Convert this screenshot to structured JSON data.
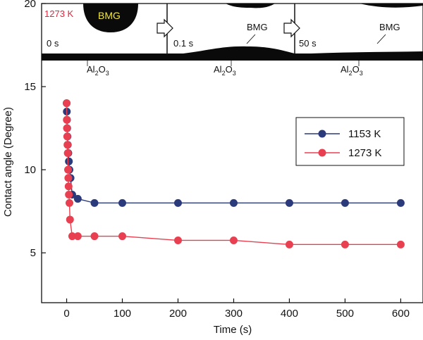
{
  "chart_data": {
    "type": "line",
    "xlabel": "Time (s)",
    "ylabel": "Contact angle (Degree)",
    "xlim": [
      -45,
      640
    ],
    "ylim": [
      2,
      20
    ],
    "xticks": [
      0,
      100,
      200,
      300,
      400,
      500,
      600
    ],
    "yticks": [
      5,
      10,
      15,
      20
    ],
    "legend_position": "right",
    "series": [
      {
        "name": "1153 K",
        "color": "#2b3a7a",
        "x": [
          0,
          0.3,
          0.6,
          1,
          1.5,
          2,
          3,
          4,
          5,
          7,
          10,
          20,
          50,
          100,
          200,
          300,
          400,
          500,
          600
        ],
        "y": [
          14,
          13.5,
          13,
          12.5,
          12,
          11.5,
          11,
          10.5,
          10,
          9.5,
          8.5,
          8.25,
          8,
          8,
          8,
          8,
          8,
          8,
          8
        ]
      },
      {
        "name": "1273 K",
        "color": "#e84050",
        "x": [
          0,
          0.3,
          0.6,
          1,
          1.5,
          2,
          2.5,
          3,
          3.5,
          4,
          5,
          6,
          10,
          20,
          50,
          100,
          200,
          300,
          400,
          500,
          600
        ],
        "y": [
          14,
          13,
          12.5,
          12,
          11.5,
          11,
          10,
          9.5,
          9,
          8.5,
          8,
          7,
          6,
          6,
          6,
          6,
          5.75,
          5.75,
          5.5,
          5.5,
          5.5
        ]
      }
    ]
  },
  "inset": {
    "panels": [
      {
        "time": "0 s",
        "temperature": "1273 K",
        "bmg": "BMG",
        "substrate": "Al2O3"
      },
      {
        "time": "0.1 s",
        "bmg": "BMG",
        "substrate": "Al2O3"
      },
      {
        "time": "50 s",
        "bmg": "BMG",
        "substrate": "Al2O3"
      }
    ]
  }
}
